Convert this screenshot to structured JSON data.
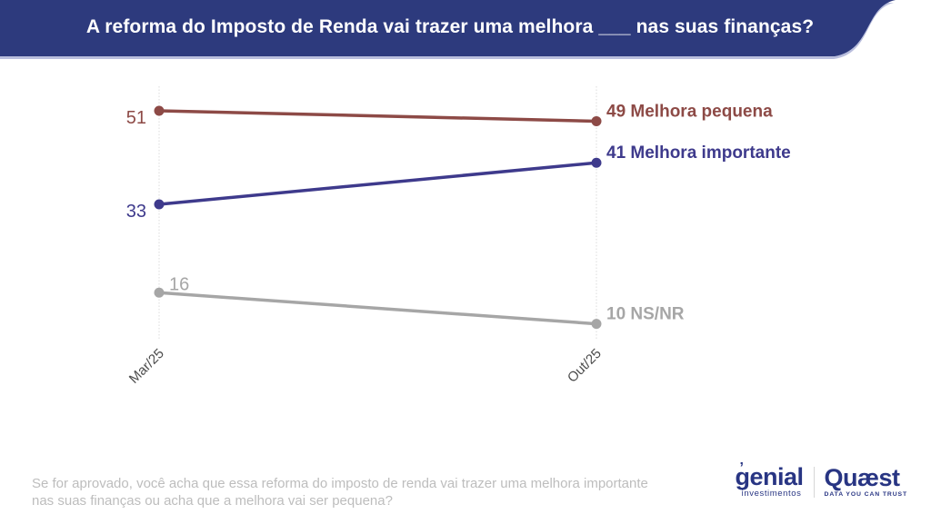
{
  "header": {
    "title": "A reforma do Imposto de Renda vai trazer uma melhora ___ nas suas finanças?"
  },
  "chart_data": {
    "type": "line",
    "categories": [
      "Mar/25",
      "Out/25"
    ],
    "series": [
      {
        "name": "Melhora pequena",
        "values": [
          51,
          49
        ],
        "color": "#8d4a46"
      },
      {
        "name": "Melhora importante",
        "values": [
          33,
          41
        ],
        "color": "#3e3a8c"
      },
      {
        "name": "NS/NR",
        "values": [
          16,
          10
        ],
        "color": "#a6a6a6"
      }
    ],
    "title": "A reforma do Imposto de Renda vai trazer uma melhora ___ nas suas finanças?",
    "xlabel": "",
    "ylabel": "",
    "ylim": [
      0,
      60
    ],
    "grid": "vertical-category-lines-only",
    "legend_position": "inline-right-of-end-points",
    "end_label_format": "{end_value} {series_name}"
  },
  "footer": {
    "question": "Se for aprovado, você acha que essa reforma do imposto de renda vai trazer uma melhora importante nas suas finanças ou acha que a melhora vai ser pequena?"
  },
  "branding": {
    "genial": {
      "name": "genial",
      "tagline": "investimentos"
    },
    "quaest": {
      "name": "Quæst",
      "tagline": "DATA YOU CAN TRUST"
    }
  },
  "colors": {
    "banner": "#2d3a7d",
    "banner_edge": "#b9bedd",
    "grid_line": "#e7e7e7",
    "axis_label": "#4c4c4c",
    "footer_text": "#bdbdbd",
    "logo_blue": "#283583"
  }
}
